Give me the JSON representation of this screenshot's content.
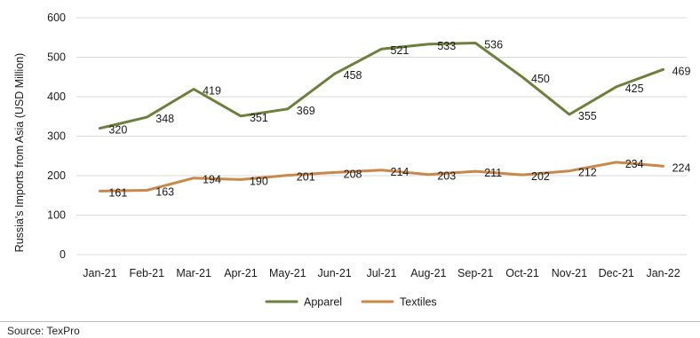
{
  "chart_data": {
    "type": "line",
    "title": "",
    "xlabel": "",
    "ylabel": "Russia's Imports from Asia (USD Million)",
    "categories": [
      "Jan-21",
      "Feb-21",
      "Mar-21",
      "Apr-21",
      "May-21",
      "Jun-21",
      "Jul-21",
      "Aug-21",
      "Sep-21",
      "Oct-21",
      "Nov-21",
      "Dec-21",
      "Jan-22"
    ],
    "ylim": [
      0,
      600
    ],
    "yticks": [
      0,
      100,
      200,
      300,
      400,
      500,
      600
    ],
    "grid": true,
    "legend": "bottom",
    "series": [
      {
        "name": "Apparel",
        "color": "#6d7f3a",
        "values": [
          320,
          348,
          419,
          351,
          369,
          458,
          521,
          533,
          536,
          450,
          355,
          425,
          469
        ]
      },
      {
        "name": "Textiles",
        "color": "#c8884a",
        "values": [
          161,
          163,
          194,
          190,
          201,
          208,
          214,
          203,
          211,
          202,
          212,
          234,
          224
        ]
      }
    ]
  },
  "source": "Source: TexPro"
}
